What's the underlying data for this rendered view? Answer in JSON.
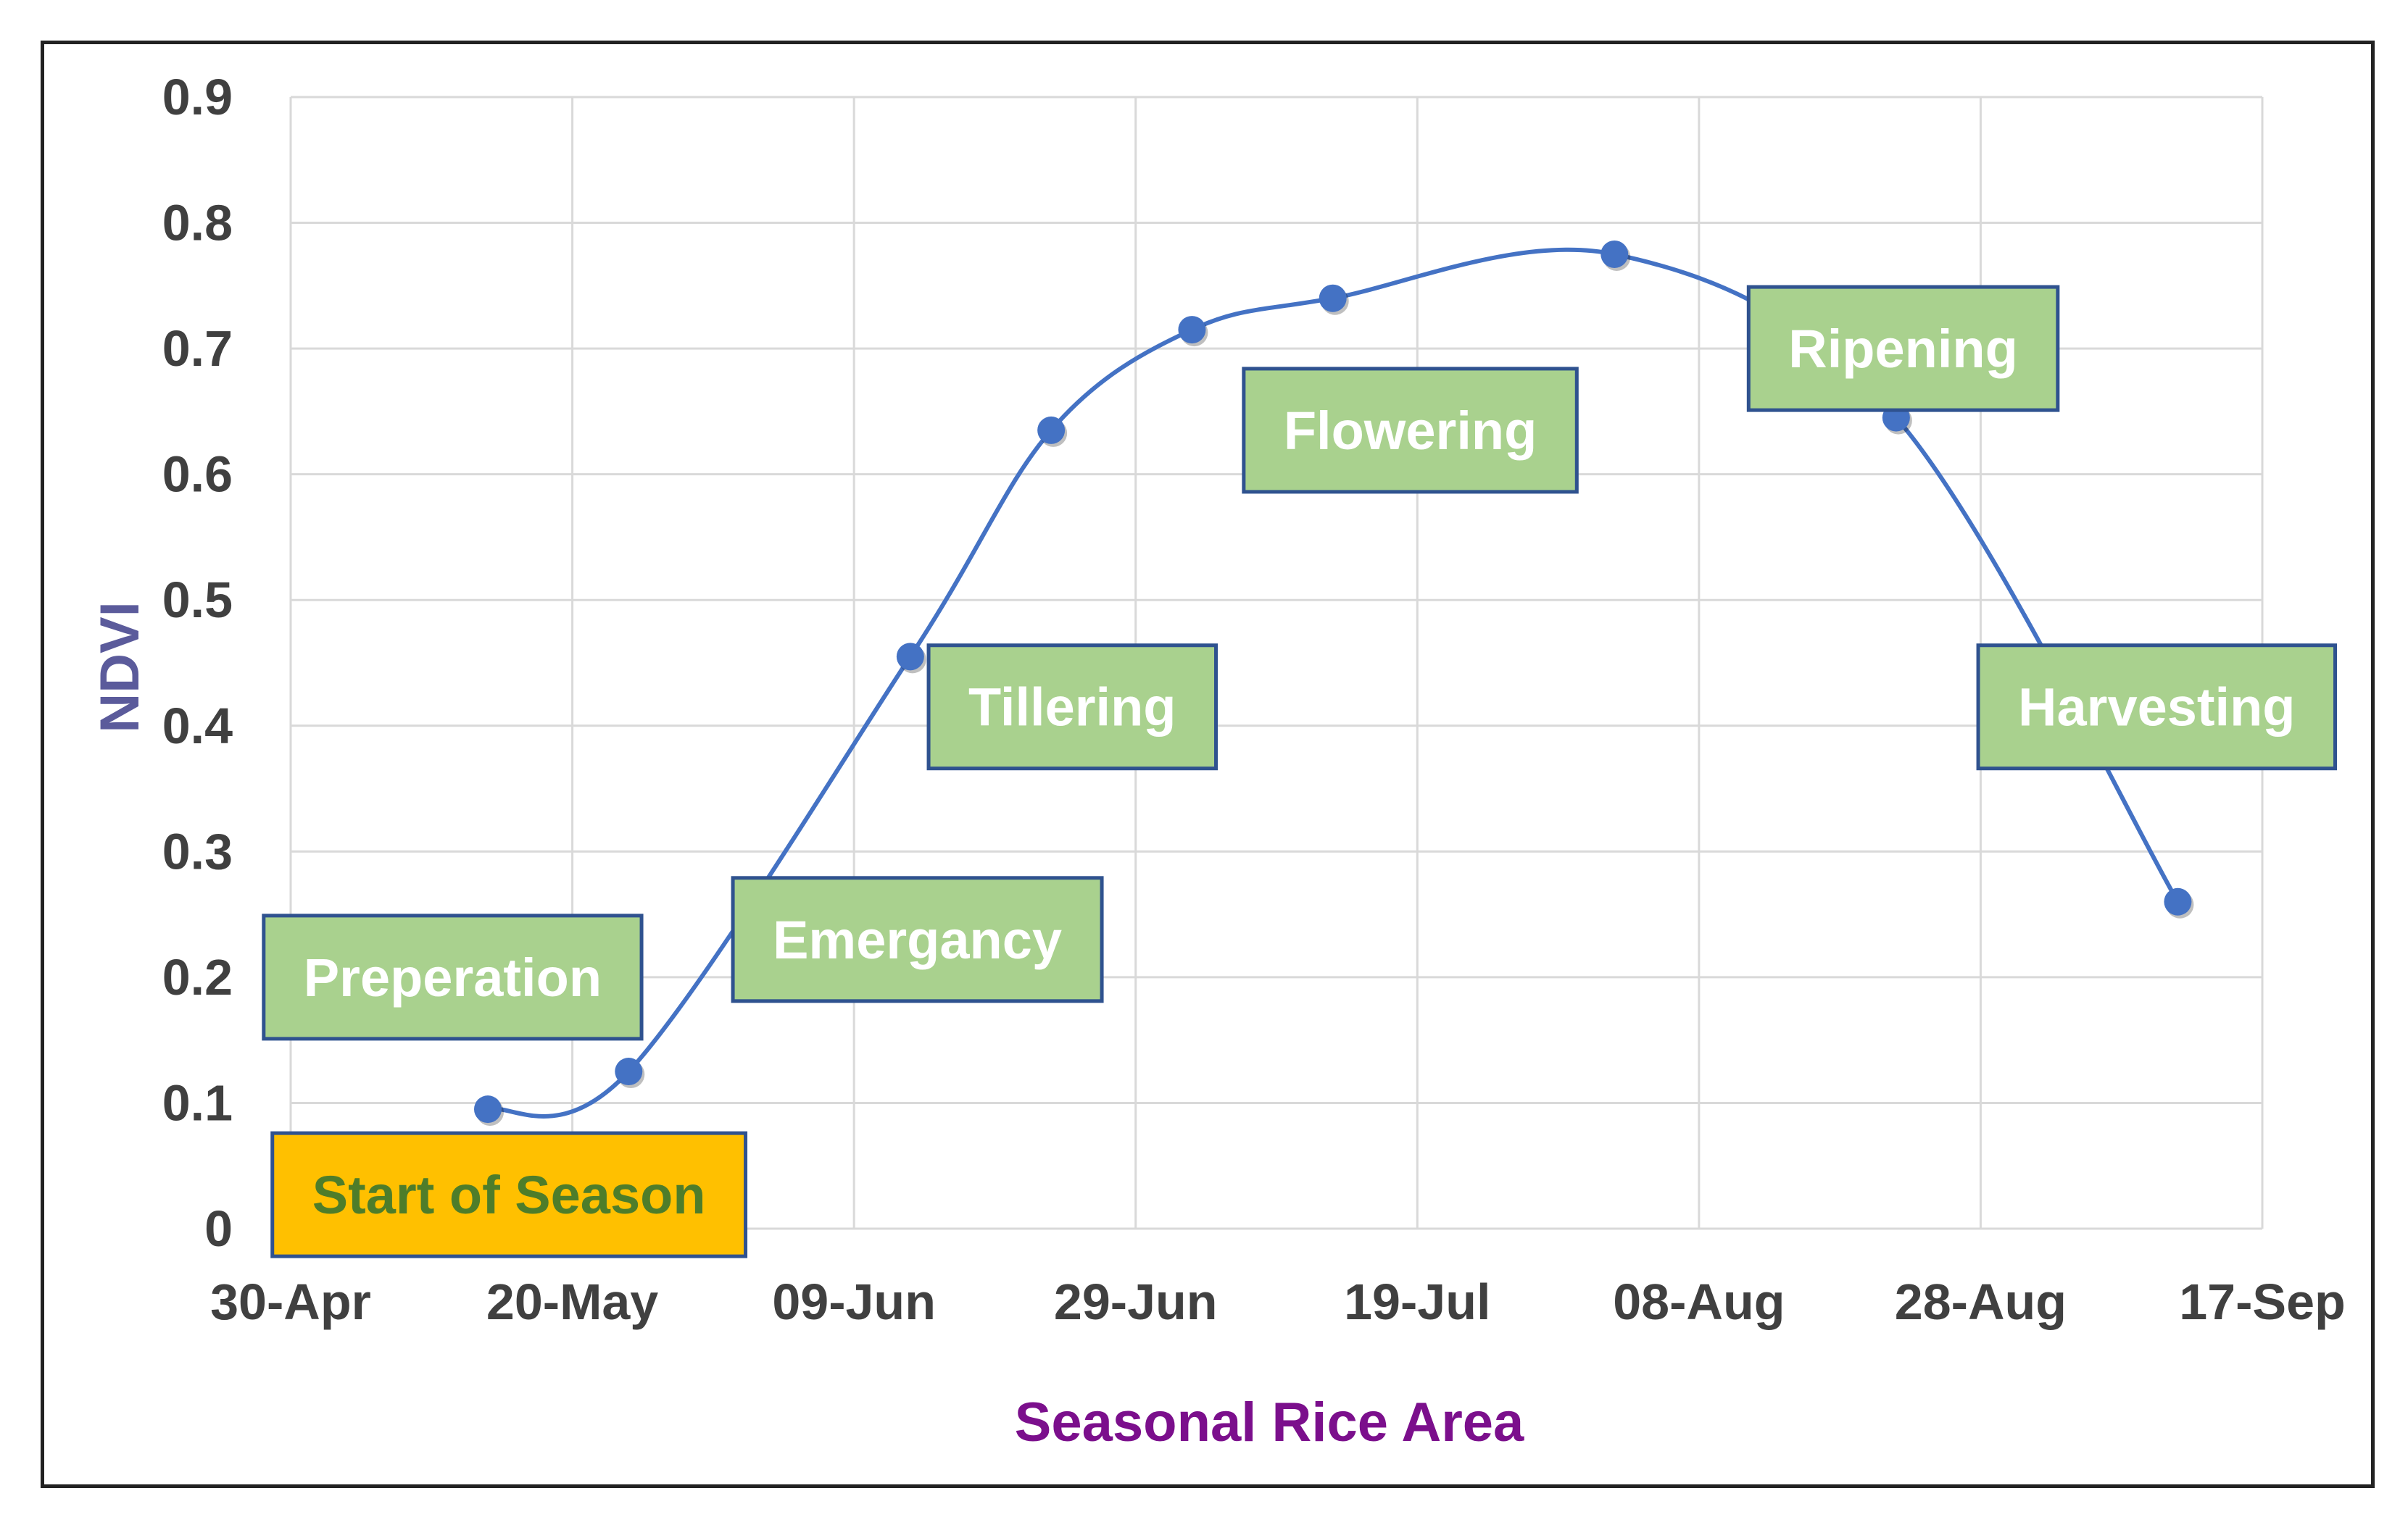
{
  "chart_data": {
    "type": "line",
    "title": "",
    "xlabel": "Seasonal Rice Area",
    "ylabel": "NDVI",
    "x_ticks": [
      "30-Apr",
      "20-May",
      "09-Jun",
      "29-Jun",
      "19-Jul",
      "08-Aug",
      "28-Aug",
      "17-Sep"
    ],
    "x_tick_days": [
      0,
      20,
      40,
      60,
      80,
      100,
      120,
      140
    ],
    "y_ticks": [
      "0",
      "0.1",
      "0.2",
      "0.3",
      "0.4",
      "0.5",
      "0.6",
      "0.7",
      "0.8",
      "0.9"
    ],
    "ylim": [
      0,
      0.9
    ],
    "xlim_days": [
      0,
      140
    ],
    "grid": true,
    "series": [
      {
        "name": "NDVI",
        "color": "#4472c4",
        "smooth": true,
        "points": [
          {
            "day": 14,
            "value": 0.095
          },
          {
            "day": 24,
            "value": 0.125
          },
          {
            "day": 44,
            "value": 0.455
          },
          {
            "day": 54,
            "value": 0.635
          },
          {
            "day": 64,
            "value": 0.715
          },
          {
            "day": 74,
            "value": 0.74
          },
          {
            "day": 94,
            "value": 0.775
          },
          {
            "day": 114,
            "value": 0.645
          },
          {
            "day": 134,
            "value": 0.26
          }
        ]
      }
    ],
    "annotations": [
      {
        "text": "Start of Season",
        "fill": "#ffc000",
        "text_color": "#4e7d2a",
        "anchor_day": 15.5,
        "anchor_value": 0.027
      },
      {
        "text": "Preperation",
        "fill": "#a9d18e",
        "text_color": "#ffffff",
        "anchor_day": 11.5,
        "anchor_value": 0.2
      },
      {
        "text": "Emergancy",
        "fill": "#a9d18e",
        "text_color": "#ffffff",
        "anchor_day": 44.5,
        "anchor_value": 0.23
      },
      {
        "text": "Tillering",
        "fill": "#a9d18e",
        "text_color": "#ffffff",
        "anchor_day": 55.5,
        "anchor_value": 0.415
      },
      {
        "text": "Flowering",
        "fill": "#a9d18e",
        "text_color": "#ffffff",
        "anchor_day": 79.5,
        "anchor_value": 0.635
      },
      {
        "text": "Ripening",
        "fill": "#a9d18e",
        "text_color": "#ffffff",
        "anchor_day": 114.5,
        "anchor_value": 0.7
      },
      {
        "text": "Harvesting",
        "fill": "#a9d18e",
        "text_color": "#ffffff",
        "anchor_day": 132.5,
        "anchor_value": 0.415
      }
    ],
    "colors": {
      "grid": "#d9d9d9",
      "tick_text": "#404040",
      "ylabel": "#5b5b9b",
      "xlabel": "#7b0f8c",
      "box_border": "#2f528f"
    }
  }
}
